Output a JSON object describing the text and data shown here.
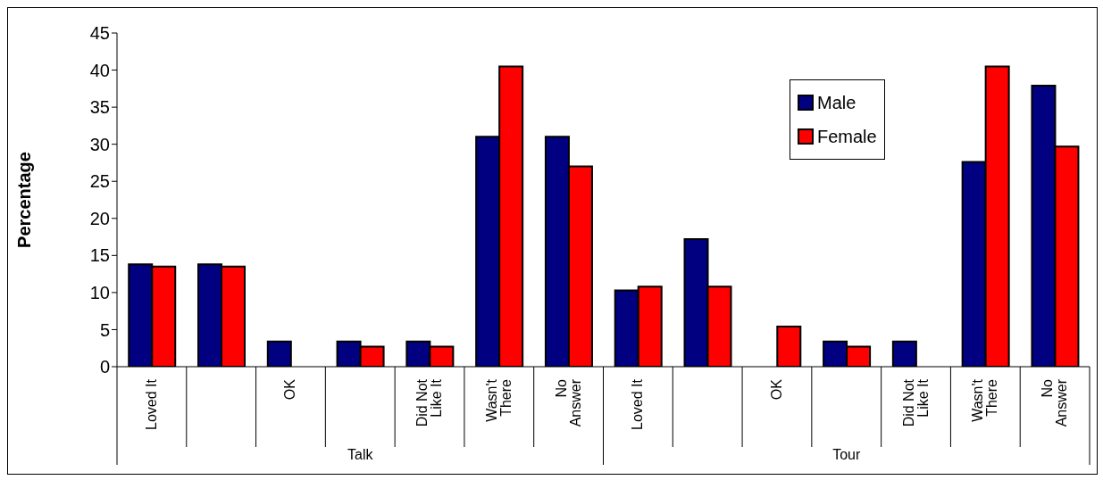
{
  "chart_data": {
    "type": "bar",
    "ylabel": "Percentage",
    "categories": [
      "Loved It",
      null,
      "OK",
      null,
      "Did Not Like It",
      "Wasn't There",
      "No Answer",
      "Loved It",
      null,
      "OK",
      null,
      "Did Not Like It",
      "Wasn't There",
      "No Answer"
    ],
    "series": [
      {
        "name": "Male",
        "color": "#000080",
        "values": [
          13.8,
          13.8,
          3.4,
          3.4,
          3.4,
          31,
          31,
          10.3,
          17.2,
          0,
          3.4,
          3.4,
          27.6,
          37.9
        ]
      },
      {
        "name": "Female",
        "color": "#ff0000",
        "values": [
          13.5,
          13.5,
          0,
          2.7,
          2.7,
          40.5,
          27,
          10.8,
          10.8,
          5.4,
          2.7,
          0,
          40.5,
          29.7
        ]
      }
    ],
    "ylim": [
      0,
      45
    ],
    "yticks": [
      0,
      5,
      10,
      15,
      20,
      25,
      30,
      35,
      40,
      45
    ],
    "grid": false,
    "legend": "top right",
    "annotations": [
      "Talk",
      "Tour"
    ]
  }
}
